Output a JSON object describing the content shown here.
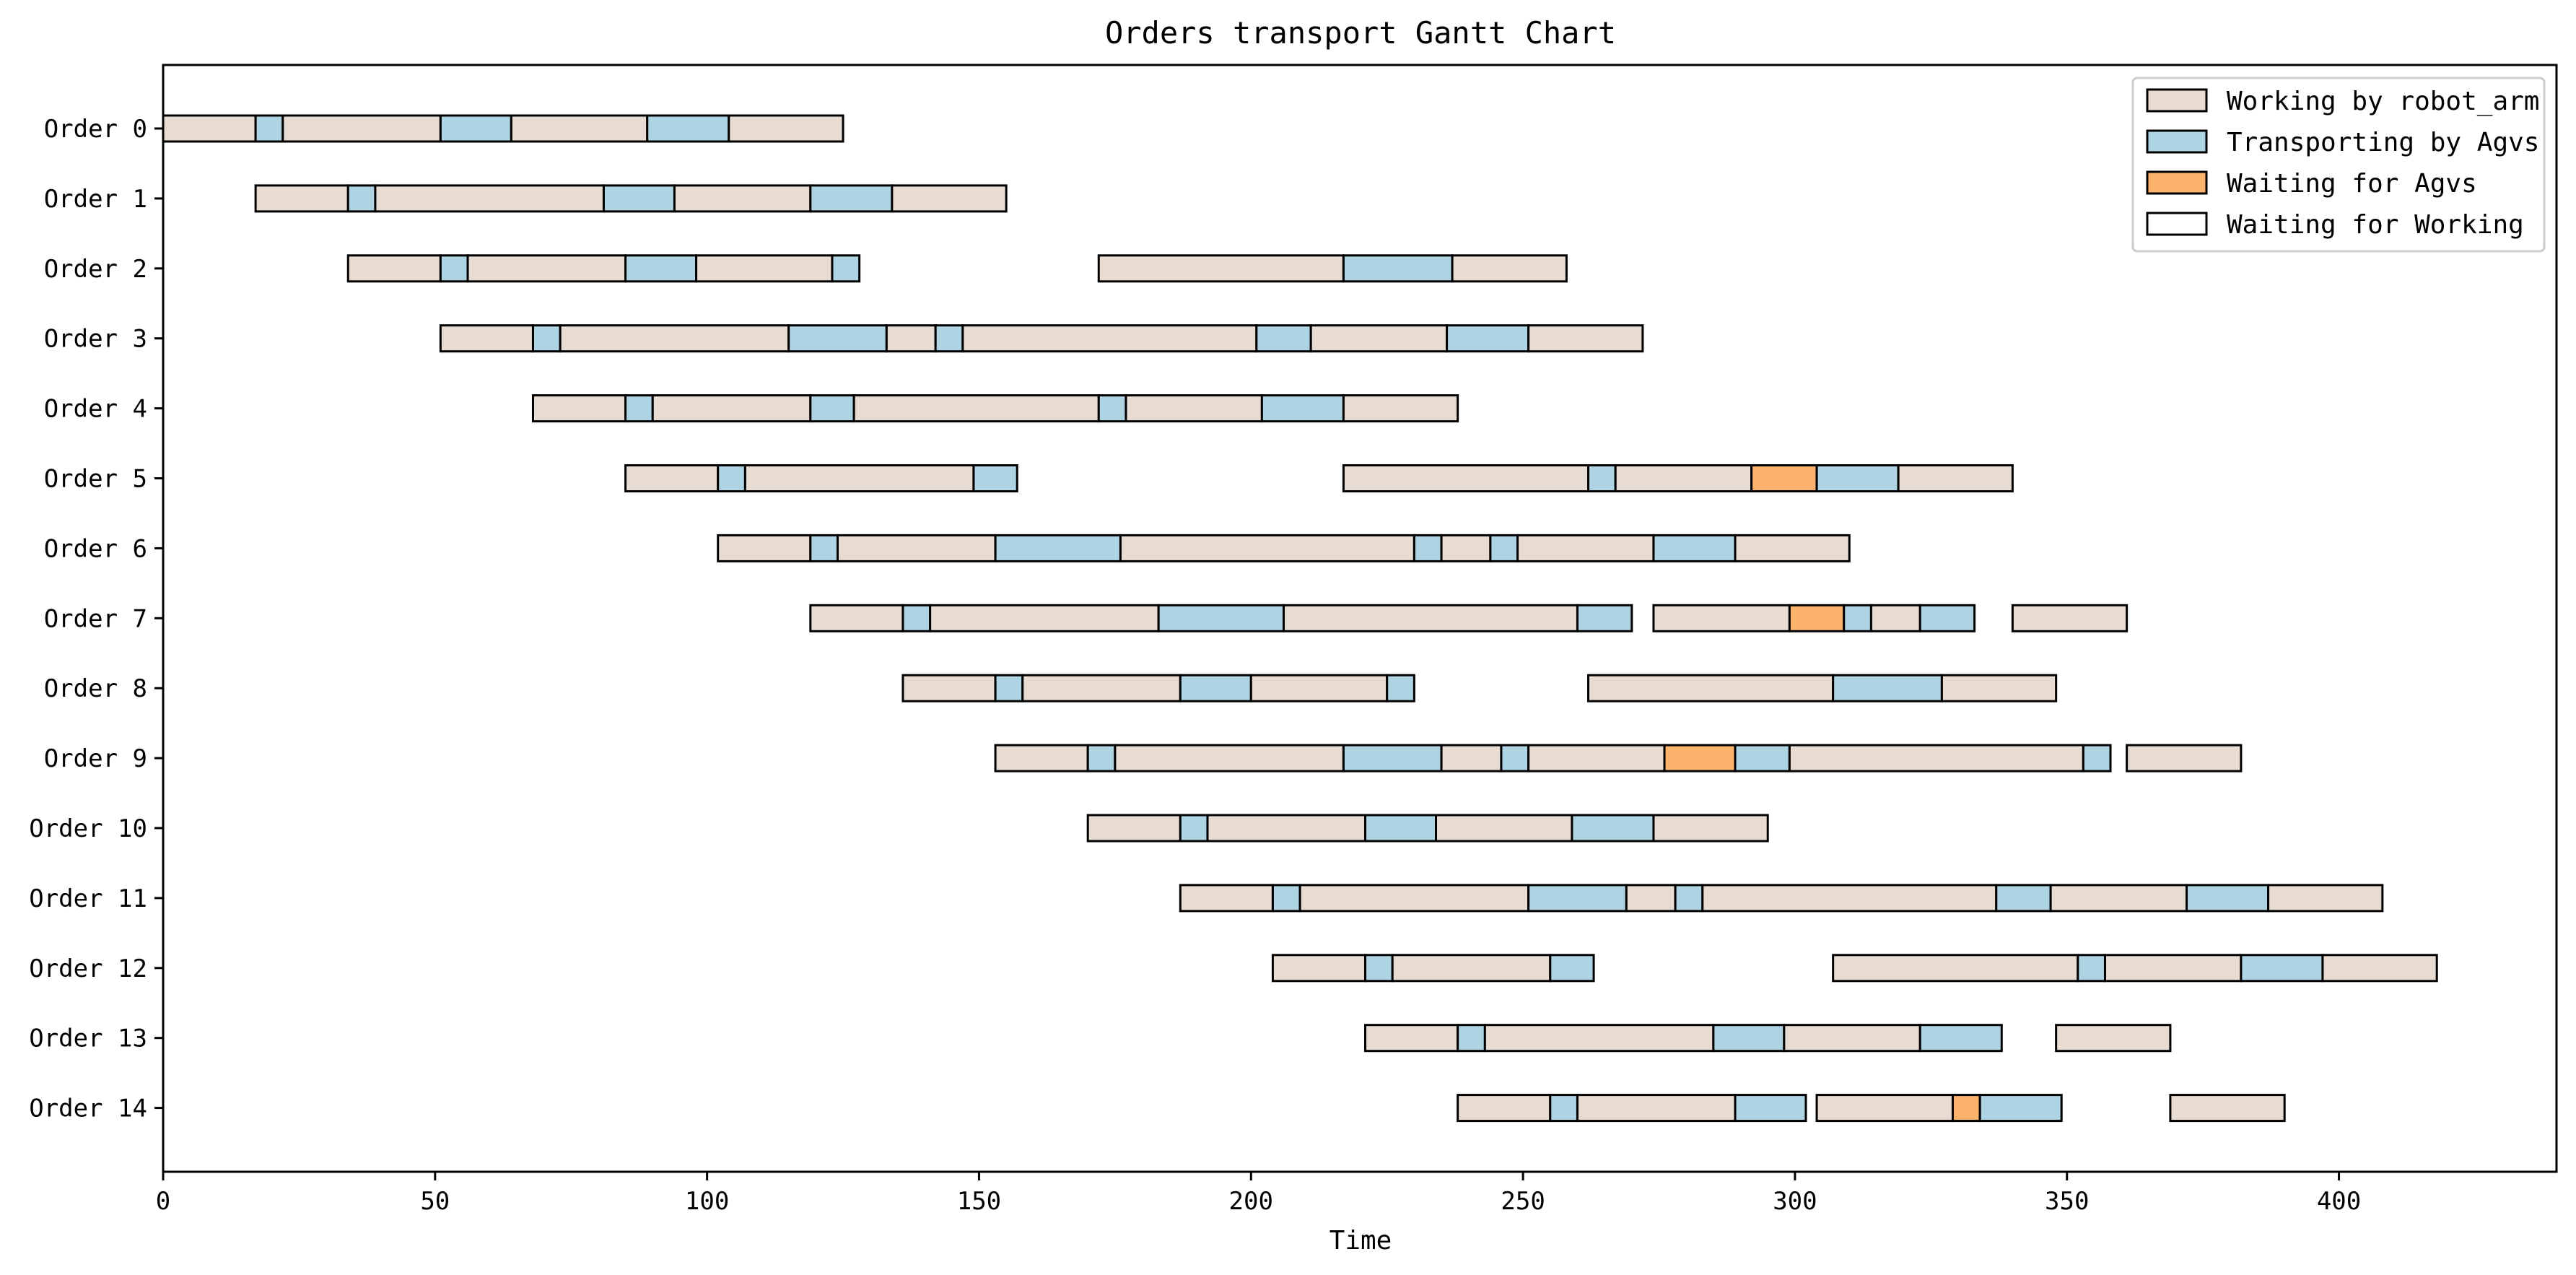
{
  "chart_data": {
    "type": "gantt",
    "title": "Orders transport Gantt Chart",
    "xlabel": "Time",
    "ylabel": "",
    "xlim": [
      0,
      440
    ],
    "xticks": [
      0,
      50,
      100,
      150,
      200,
      250,
      300,
      350,
      400
    ],
    "grid": false,
    "legend_position": "top-right",
    "legend": [
      {
        "key": "work",
        "label": "Working by robot_arm",
        "color": "#e8dcd2"
      },
      {
        "key": "agv",
        "label": "Transporting by Agvs",
        "color": "#aed3e3"
      },
      {
        "key": "waitagv",
        "label": "Waiting for Agvs",
        "color": "#fbb36e"
      },
      {
        "key": "waitwork",
        "label": "Waiting for Working",
        "color": "#ffffff"
      }
    ],
    "orders": [
      {
        "name": "Order 0",
        "segments": [
          {
            "s": 0,
            "e": 17,
            "k": "work"
          },
          {
            "s": 17,
            "e": 22,
            "k": "agv"
          },
          {
            "s": 22,
            "e": 51,
            "k": "work"
          },
          {
            "s": 51,
            "e": 64,
            "k": "agv"
          },
          {
            "s": 64,
            "e": 89,
            "k": "work"
          },
          {
            "s": 89,
            "e": 104,
            "k": "agv"
          },
          {
            "s": 104,
            "e": 125,
            "k": "work"
          }
        ]
      },
      {
        "name": "Order 1",
        "segments": [
          {
            "s": 17,
            "e": 34,
            "k": "work"
          },
          {
            "s": 34,
            "e": 39,
            "k": "agv"
          },
          {
            "s": 39,
            "e": 81,
            "k": "work"
          },
          {
            "s": 81,
            "e": 94,
            "k": "agv"
          },
          {
            "s": 94,
            "e": 119,
            "k": "work"
          },
          {
            "s": 119,
            "e": 134,
            "k": "agv"
          },
          {
            "s": 134,
            "e": 155,
            "k": "work"
          }
        ]
      },
      {
        "name": "Order 2",
        "segments": [
          {
            "s": 34,
            "e": 51,
            "k": "work"
          },
          {
            "s": 51,
            "e": 56,
            "k": "agv"
          },
          {
            "s": 56,
            "e": 85,
            "k": "work"
          },
          {
            "s": 85,
            "e": 98,
            "k": "agv"
          },
          {
            "s": 98,
            "e": 123,
            "k": "work"
          },
          {
            "s": 123,
            "e": 128,
            "k": "agv"
          },
          {
            "s": 172,
            "e": 217,
            "k": "work"
          },
          {
            "s": 217,
            "e": 237,
            "k": "agv"
          },
          {
            "s": 237,
            "e": 258,
            "k": "work"
          }
        ]
      },
      {
        "name": "Order 3",
        "segments": [
          {
            "s": 51,
            "e": 68,
            "k": "work"
          },
          {
            "s": 68,
            "e": 73,
            "k": "agv"
          },
          {
            "s": 73,
            "e": 115,
            "k": "work"
          },
          {
            "s": 115,
            "e": 133,
            "k": "agv"
          },
          {
            "s": 133,
            "e": 142,
            "k": "work"
          },
          {
            "s": 142,
            "e": 147,
            "k": "agv"
          },
          {
            "s": 147,
            "e": 201,
            "k": "work"
          },
          {
            "s": 201,
            "e": 211,
            "k": "agv"
          },
          {
            "s": 211,
            "e": 236,
            "k": "work"
          },
          {
            "s": 236,
            "e": 251,
            "k": "agv"
          },
          {
            "s": 251,
            "e": 272,
            "k": "work"
          }
        ]
      },
      {
        "name": "Order 4",
        "segments": [
          {
            "s": 68,
            "e": 85,
            "k": "work"
          },
          {
            "s": 85,
            "e": 90,
            "k": "agv"
          },
          {
            "s": 90,
            "e": 119,
            "k": "work"
          },
          {
            "s": 119,
            "e": 127,
            "k": "agv"
          },
          {
            "s": 127,
            "e": 172,
            "k": "work"
          },
          {
            "s": 172,
            "e": 177,
            "k": "agv"
          },
          {
            "s": 177,
            "e": 202,
            "k": "work"
          },
          {
            "s": 202,
            "e": 217,
            "k": "agv"
          },
          {
            "s": 217,
            "e": 238,
            "k": "work"
          }
        ]
      },
      {
        "name": "Order 5",
        "segments": [
          {
            "s": 85,
            "e": 102,
            "k": "work"
          },
          {
            "s": 102,
            "e": 107,
            "k": "agv"
          },
          {
            "s": 107,
            "e": 149,
            "k": "work"
          },
          {
            "s": 149,
            "e": 157,
            "k": "agv"
          },
          {
            "s": 217,
            "e": 262,
            "k": "work"
          },
          {
            "s": 262,
            "e": 267,
            "k": "agv"
          },
          {
            "s": 267,
            "e": 292,
            "k": "work"
          },
          {
            "s": 292,
            "e": 304,
            "k": "waitagv"
          },
          {
            "s": 304,
            "e": 319,
            "k": "agv"
          },
          {
            "s": 319,
            "e": 340,
            "k": "work"
          }
        ]
      },
      {
        "name": "Order 6",
        "segments": [
          {
            "s": 102,
            "e": 119,
            "k": "work"
          },
          {
            "s": 119,
            "e": 124,
            "k": "agv"
          },
          {
            "s": 124,
            "e": 153,
            "k": "work"
          },
          {
            "s": 153,
            "e": 176,
            "k": "agv"
          },
          {
            "s": 176,
            "e": 230,
            "k": "work"
          },
          {
            "s": 230,
            "e": 235,
            "k": "agv"
          },
          {
            "s": 235,
            "e": 244,
            "k": "work"
          },
          {
            "s": 244,
            "e": 249,
            "k": "agv"
          },
          {
            "s": 249,
            "e": 274,
            "k": "work"
          },
          {
            "s": 274,
            "e": 289,
            "k": "agv"
          },
          {
            "s": 289,
            "e": 310,
            "k": "work"
          }
        ]
      },
      {
        "name": "Order 7",
        "segments": [
          {
            "s": 119,
            "e": 136,
            "k": "work"
          },
          {
            "s": 136,
            "e": 141,
            "k": "agv"
          },
          {
            "s": 141,
            "e": 183,
            "k": "work"
          },
          {
            "s": 183,
            "e": 206,
            "k": "agv"
          },
          {
            "s": 206,
            "e": 260,
            "k": "work"
          },
          {
            "s": 260,
            "e": 270,
            "k": "agv"
          },
          {
            "s": 274,
            "e": 299,
            "k": "work"
          },
          {
            "s": 299,
            "e": 309,
            "k": "waitagv"
          },
          {
            "s": 309,
            "e": 314,
            "k": "agv"
          },
          {
            "s": 314,
            "e": 323,
            "k": "work"
          },
          {
            "s": 323,
            "e": 333,
            "k": "agv"
          },
          {
            "s": 340,
            "e": 361,
            "k": "work"
          }
        ]
      },
      {
        "name": "Order 8",
        "segments": [
          {
            "s": 136,
            "e": 153,
            "k": "work"
          },
          {
            "s": 153,
            "e": 158,
            "k": "agv"
          },
          {
            "s": 158,
            "e": 187,
            "k": "work"
          },
          {
            "s": 187,
            "e": 200,
            "k": "agv"
          },
          {
            "s": 200,
            "e": 225,
            "k": "work"
          },
          {
            "s": 225,
            "e": 230,
            "k": "agv"
          },
          {
            "s": 262,
            "e": 307,
            "k": "work"
          },
          {
            "s": 307,
            "e": 327,
            "k": "agv"
          },
          {
            "s": 327,
            "e": 348,
            "k": "work"
          }
        ]
      },
      {
        "name": "Order 9",
        "segments": [
          {
            "s": 153,
            "e": 170,
            "k": "work"
          },
          {
            "s": 170,
            "e": 175,
            "k": "agv"
          },
          {
            "s": 175,
            "e": 217,
            "k": "work"
          },
          {
            "s": 217,
            "e": 235,
            "k": "agv"
          },
          {
            "s": 235,
            "e": 246,
            "k": "work"
          },
          {
            "s": 246,
            "e": 251,
            "k": "agv"
          },
          {
            "s": 251,
            "e": 276,
            "k": "work"
          },
          {
            "s": 276,
            "e": 289,
            "k": "waitagv"
          },
          {
            "s": 289,
            "e": 299,
            "k": "agv"
          },
          {
            "s": 299,
            "e": 353,
            "k": "work"
          },
          {
            "s": 353,
            "e": 358,
            "k": "agv"
          },
          {
            "s": 361,
            "e": 382,
            "k": "work"
          }
        ]
      },
      {
        "name": "Order 10",
        "segments": [
          {
            "s": 170,
            "e": 187,
            "k": "work"
          },
          {
            "s": 187,
            "e": 192,
            "k": "agv"
          },
          {
            "s": 192,
            "e": 221,
            "k": "work"
          },
          {
            "s": 221,
            "e": 234,
            "k": "agv"
          },
          {
            "s": 234,
            "e": 259,
            "k": "work"
          },
          {
            "s": 259,
            "e": 274,
            "k": "agv"
          },
          {
            "s": 274,
            "e": 295,
            "k": "work"
          }
        ]
      },
      {
        "name": "Order 11",
        "segments": [
          {
            "s": 187,
            "e": 204,
            "k": "work"
          },
          {
            "s": 204,
            "e": 209,
            "k": "agv"
          },
          {
            "s": 209,
            "e": 251,
            "k": "work"
          },
          {
            "s": 251,
            "e": 269,
            "k": "agv"
          },
          {
            "s": 269,
            "e": 278,
            "k": "work"
          },
          {
            "s": 278,
            "e": 283,
            "k": "agv"
          },
          {
            "s": 283,
            "e": 337,
            "k": "work"
          },
          {
            "s": 337,
            "e": 347,
            "k": "agv"
          },
          {
            "s": 347,
            "e": 372,
            "k": "work"
          },
          {
            "s": 372,
            "e": 387,
            "k": "agv"
          },
          {
            "s": 387,
            "e": 408,
            "k": "work"
          }
        ]
      },
      {
        "name": "Order 12",
        "segments": [
          {
            "s": 204,
            "e": 221,
            "k": "work"
          },
          {
            "s": 221,
            "e": 226,
            "k": "agv"
          },
          {
            "s": 226,
            "e": 255,
            "k": "work"
          },
          {
            "s": 255,
            "e": 263,
            "k": "agv"
          },
          {
            "s": 307,
            "e": 352,
            "k": "work"
          },
          {
            "s": 352,
            "e": 357,
            "k": "agv"
          },
          {
            "s": 357,
            "e": 382,
            "k": "work"
          },
          {
            "s": 382,
            "e": 397,
            "k": "agv"
          },
          {
            "s": 397,
            "e": 418,
            "k": "work"
          }
        ]
      },
      {
        "name": "Order 13",
        "segments": [
          {
            "s": 221,
            "e": 238,
            "k": "work"
          },
          {
            "s": 238,
            "e": 243,
            "k": "agv"
          },
          {
            "s": 243,
            "e": 285,
            "k": "work"
          },
          {
            "s": 285,
            "e": 298,
            "k": "agv"
          },
          {
            "s": 298,
            "e": 323,
            "k": "work"
          },
          {
            "s": 323,
            "e": 338,
            "k": "agv"
          },
          {
            "s": 348,
            "e": 369,
            "k": "work"
          }
        ]
      },
      {
        "name": "Order 14",
        "segments": [
          {
            "s": 238,
            "e": 255,
            "k": "work"
          },
          {
            "s": 255,
            "e": 260,
            "k": "agv"
          },
          {
            "s": 260,
            "e": 289,
            "k": "work"
          },
          {
            "s": 289,
            "e": 302,
            "k": "agv"
          },
          {
            "s": 304,
            "e": 329,
            "k": "work"
          },
          {
            "s": 329,
            "e": 334,
            "k": "waitagv"
          },
          {
            "s": 334,
            "e": 349,
            "k": "agv"
          },
          {
            "s": 369,
            "e": 390,
            "k": "work"
          }
        ]
      }
    ]
  }
}
